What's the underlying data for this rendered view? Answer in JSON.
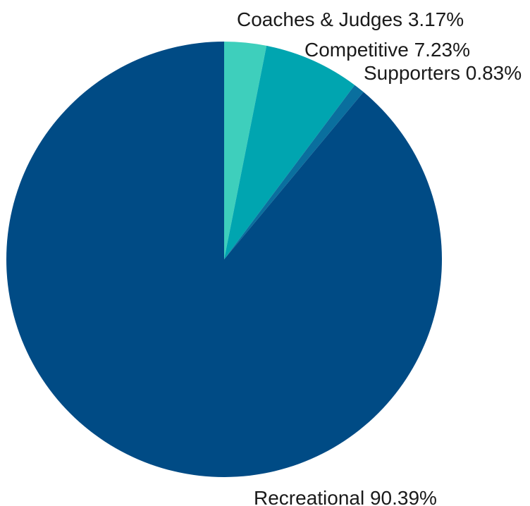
{
  "chart_data": {
    "type": "pie",
    "title": "",
    "slices": [
      {
        "label": "Coaches & Judges",
        "value": 3.17,
        "display": "Coaches & Judges 3.17%",
        "color": "#3ecfbc"
      },
      {
        "label": "Competitive",
        "value": 7.23,
        "display": "Competitive 7.23%",
        "color": "#00a5b0"
      },
      {
        "label": "Supporters",
        "value": 0.83,
        "display": "Supporters 0.83%",
        "color": "#0a6f9e"
      },
      {
        "label": "Recreational",
        "value": 90.39,
        "display": "Recreational 90.39%",
        "color": "#004b85"
      }
    ],
    "start_angle": "12 o'clock",
    "direction": "clockwise",
    "legend": "none"
  }
}
